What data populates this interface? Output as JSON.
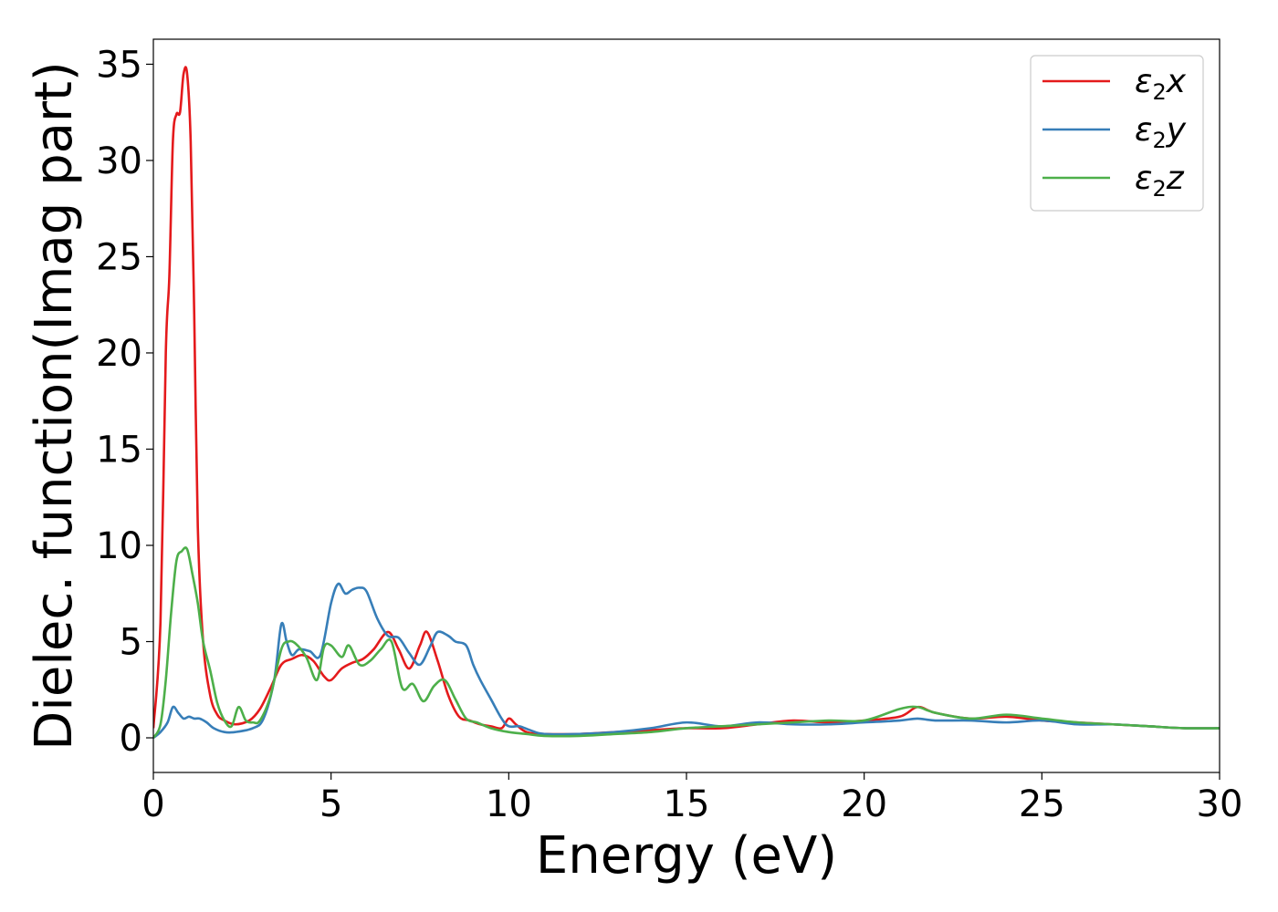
{
  "chart_data": {
    "type": "line",
    "xlabel": "Energy (eV)",
    "ylabel": "Dielec. function(Imag part)",
    "xlim": [
      0,
      30
    ],
    "ylim": [
      -1.8,
      36.3
    ],
    "xticks": [
      0,
      5,
      10,
      15,
      20,
      25,
      30
    ],
    "yticks": [
      0,
      5,
      10,
      15,
      20,
      25,
      30,
      35
    ],
    "grid": false,
    "legend_position": "top-right",
    "series": [
      {
        "name": "ε2x",
        "name_main": "ε",
        "name_sub": "2",
        "name_tail": "x",
        "color": "#e41a1c",
        "x": [
          0,
          0.2,
          0.35,
          0.45,
          0.55,
          0.65,
          0.75,
          0.85,
          0.95,
          1.05,
          1.15,
          1.25,
          1.4,
          1.6,
          1.8,
          2.0,
          2.3,
          2.7,
          3.0,
          3.3,
          3.6,
          3.9,
          4.2,
          4.5,
          4.8,
          5.0,
          5.3,
          5.6,
          5.9,
          6.2,
          6.6,
          6.9,
          7.2,
          7.5,
          7.7,
          8.0,
          8.3,
          8.6,
          8.9,
          9.2,
          9.5,
          9.8,
          10.0,
          10.2,
          10.5,
          11.0,
          12.0,
          13.0,
          14.0,
          15.0,
          16.0,
          17.0,
          18.0,
          19.0,
          20.0,
          21.0,
          21.5,
          22.0,
          23.0,
          24.0,
          25.0,
          26.0,
          27.0,
          28.0,
          29.0,
          30.0
        ],
        "y": [
          0.5,
          6,
          20,
          24,
          31,
          32.4,
          32.5,
          34.5,
          34.5,
          31,
          22,
          11,
          5,
          2.2,
          1.2,
          0.9,
          0.7,
          0.9,
          1.5,
          2.6,
          3.8,
          4.1,
          4.3,
          4.0,
          3.2,
          3.0,
          3.6,
          3.9,
          4.1,
          4.6,
          5.5,
          4.6,
          3.6,
          4.8,
          5.5,
          4.0,
          2.2,
          1.1,
          0.9,
          0.7,
          0.6,
          0.5,
          1.0,
          0.7,
          0.3,
          0.2,
          0.2,
          0.3,
          0.4,
          0.5,
          0.5,
          0.7,
          0.9,
          0.8,
          0.9,
          1.1,
          1.6,
          1.3,
          1.0,
          1.1,
          0.9,
          0.8,
          0.7,
          0.6,
          0.5,
          0.5
        ]
      },
      {
        "name": "ε2y",
        "name_main": "ε",
        "name_sub": "2",
        "name_tail": "y",
        "color": "#377eb8",
        "x": [
          0,
          0.2,
          0.4,
          0.55,
          0.7,
          0.85,
          1.0,
          1.15,
          1.3,
          1.5,
          1.7,
          2.0,
          2.3,
          2.8,
          3.1,
          3.4,
          3.6,
          3.75,
          3.9,
          4.1,
          4.4,
          4.7,
          5.0,
          5.2,
          5.4,
          5.6,
          5.8,
          6.0,
          6.3,
          6.6,
          6.9,
          7.2,
          7.5,
          7.8,
          8.0,
          8.3,
          8.5,
          8.8,
          9.0,
          9.2,
          9.5,
          9.8,
          10.0,
          10.3,
          10.6,
          11.0,
          12.0,
          13.0,
          14.0,
          15.0,
          16.0,
          17.0,
          18.0,
          19.0,
          20.0,
          21.0,
          21.5,
          22.0,
          23.0,
          24.0,
          25.0,
          26.0,
          27.0,
          28.0,
          29.0,
          30.0
        ],
        "y": [
          0.0,
          0.3,
          0.8,
          1.6,
          1.3,
          1.0,
          1.1,
          1.0,
          1.0,
          0.8,
          0.5,
          0.3,
          0.3,
          0.5,
          1.0,
          3.0,
          5.9,
          5.0,
          4.3,
          4.6,
          4.5,
          4.3,
          7.0,
          8.0,
          7.5,
          7.7,
          7.8,
          7.6,
          6.2,
          5.3,
          5.2,
          4.4,
          3.8,
          4.8,
          5.5,
          5.3,
          5.0,
          4.8,
          3.8,
          3.0,
          2.0,
          1.0,
          0.6,
          0.6,
          0.4,
          0.2,
          0.2,
          0.3,
          0.5,
          0.8,
          0.6,
          0.8,
          0.7,
          0.7,
          0.8,
          0.9,
          1.0,
          0.9,
          0.9,
          0.8,
          0.9,
          0.7,
          0.7,
          0.6,
          0.5,
          0.5
        ]
      },
      {
        "name": "ε2z",
        "name_main": "ε",
        "name_sub": "2",
        "name_tail": "z",
        "color": "#4daf4a",
        "x": [
          0,
          0.2,
          0.35,
          0.5,
          0.65,
          0.8,
          0.95,
          1.1,
          1.25,
          1.4,
          1.6,
          1.8,
          2.0,
          2.2,
          2.4,
          2.6,
          2.8,
          3.0,
          3.3,
          3.6,
          3.8,
          4.0,
          4.3,
          4.6,
          4.8,
          5.0,
          5.3,
          5.5,
          5.8,
          6.1,
          6.4,
          6.7,
          7.0,
          7.3,
          7.6,
          7.9,
          8.2,
          8.5,
          8.8,
          9.1,
          9.5,
          10.0,
          10.5,
          11.0,
          12.0,
          13.0,
          14.0,
          15.0,
          16.0,
          17.0,
          18.0,
          19.0,
          20.0,
          21.0,
          21.5,
          22.0,
          23.0,
          24.0,
          25.0,
          26.0,
          27.0,
          28.0,
          29.0,
          30.0
        ],
        "y": [
          0.0,
          0.7,
          3.0,
          6.5,
          9.2,
          9.7,
          9.8,
          8.5,
          7.0,
          5.0,
          3.5,
          1.8,
          0.9,
          0.6,
          1.6,
          0.9,
          0.8,
          0.9,
          2.2,
          4.6,
          5.0,
          4.9,
          4.2,
          3.0,
          4.7,
          4.8,
          4.2,
          4.8,
          3.8,
          4.0,
          4.6,
          5.0,
          2.6,
          2.8,
          1.9,
          2.7,
          3.0,
          2.0,
          1.0,
          0.8,
          0.5,
          0.3,
          0.2,
          0.1,
          0.1,
          0.2,
          0.3,
          0.5,
          0.6,
          0.7,
          0.8,
          0.9,
          0.9,
          1.5,
          1.6,
          1.3,
          1.0,
          1.2,
          1.0,
          0.8,
          0.7,
          0.6,
          0.5,
          0.5
        ]
      }
    ]
  }
}
